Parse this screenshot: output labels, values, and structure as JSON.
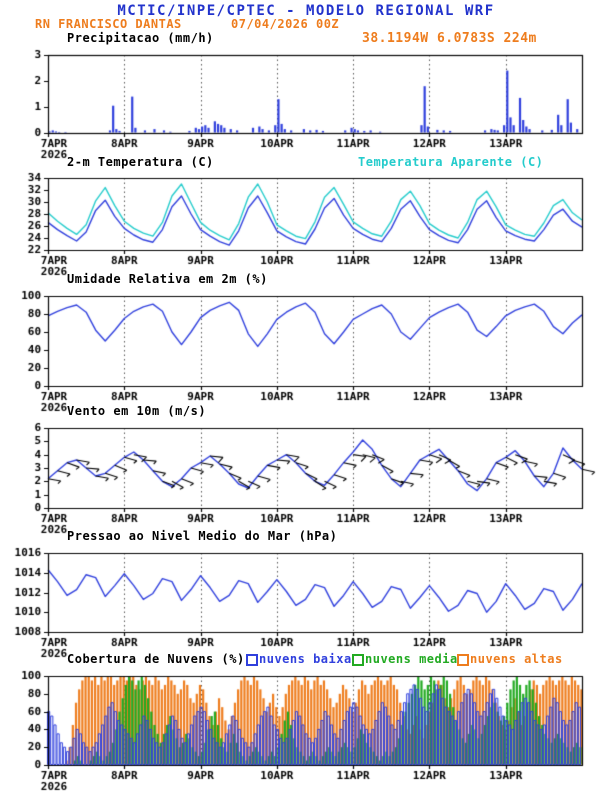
{
  "header": {
    "title": "MCTIC/INPE/CPTEC - MODELO REGIONAL WRF",
    "station": "RN FRANCISCO DANTAS",
    "run_datetime": "07/04/2026 00Z",
    "location": "38.1194W 6.0783S 224m"
  },
  "colors": {
    "header_blue": "#2233cc",
    "orange": "#ee7d1e",
    "line_blue": "#3040dd",
    "cyan": "#25cccc",
    "green": "#22aa22",
    "black": "#000000",
    "grid": "#555555"
  },
  "x_axis": {
    "hours_total": 168,
    "tick_hours": [
      0,
      24,
      48,
      72,
      96,
      120,
      144
    ],
    "tick_labels": [
      "7APR",
      "8APR",
      "9APR",
      "10APR",
      "11APR",
      "12APR",
      "13APR"
    ],
    "year_label": "2026"
  },
  "chart_data": [
    {
      "id": "precip",
      "type": "bar",
      "title": "Precipitacao (mm/h)",
      "ylim": [
        0,
        3
      ],
      "yticks": [
        0,
        1,
        2,
        3
      ],
      "x_step_hours": 1,
      "values": [
        0.06,
        0.1,
        0.06,
        0.04,
        0,
        0.04,
        0,
        0,
        0,
        0,
        0,
        0,
        0,
        0,
        0,
        0,
        0,
        0,
        0,
        0.1,
        1.05,
        0.15,
        0.08,
        0,
        0,
        0,
        1.4,
        0.2,
        0,
        0,
        0.1,
        0,
        0,
        0.15,
        0,
        0,
        0.1,
        0,
        0.05,
        0,
        0,
        0,
        0,
        0,
        0.08,
        0,
        0.2,
        0.15,
        0.25,
        0.3,
        0.2,
        0,
        0.45,
        0.35,
        0.3,
        0.2,
        0,
        0.15,
        0,
        0.1,
        0,
        0,
        0,
        0,
        0.2,
        0,
        0.25,
        0.15,
        0,
        0.1,
        0,
        0.3,
        1.3,
        0.35,
        0.15,
        0,
        0.1,
        0,
        0,
        0,
        0.15,
        0,
        0.1,
        0,
        0.12,
        0,
        0.08,
        0,
        0,
        0,
        0,
        0,
        0,
        0.1,
        0,
        0.2,
        0.15,
        0.1,
        0,
        0.08,
        0,
        0.1,
        0,
        0,
        0.05,
        0,
        0,
        0,
        0,
        0,
        0,
        0,
        0,
        0,
        0,
        0,
        0,
        0.3,
        1.8,
        0.25,
        0,
        0,
        0.12,
        0,
        0.1,
        0,
        0.08,
        0,
        0,
        0,
        0,
        0,
        0,
        0,
        0,
        0,
        0,
        0.1,
        0,
        0.15,
        0.12,
        0.1,
        0,
        0.3,
        2.4,
        0.6,
        0.3,
        0,
        1.35,
        0.5,
        0.25,
        0.15,
        0,
        0,
        0,
        0.1,
        0,
        0,
        0.12,
        0,
        0.7,
        0.3,
        0,
        1.3,
        0.4,
        0,
        0.15,
        0
      ]
    },
    {
      "id": "temp",
      "type": "line",
      "title": "2-m Temperatura (C)",
      "legend_right": "Temperatura Aparente (C)",
      "ylim": [
        22,
        34
      ],
      "yticks": [
        22,
        24,
        26,
        28,
        30,
        32,
        34
      ],
      "x_step_hours": 3,
      "series": [
        {
          "name": "2-m Temperatura (C)",
          "color": "line_blue",
          "values": [
            26.6,
            25.4,
            24.4,
            23.5,
            25.0,
            28.6,
            30.3,
            27.6,
            25.6,
            24.5,
            23.7,
            23.3,
            25.4,
            29.2,
            31.0,
            28.0,
            25.4,
            24.3,
            23.4,
            22.8,
            25.2,
            29.0,
            31.0,
            28.2,
            25.2,
            24.2,
            23.4,
            23.0,
            25.5,
            29.0,
            30.6,
            27.8,
            25.6,
            24.6,
            23.8,
            23.4,
            25.6,
            28.8,
            30.2,
            27.6,
            25.4,
            24.4,
            23.6,
            23.2,
            25.4,
            28.8,
            30.2,
            27.4,
            25.2,
            24.4,
            23.8,
            23.5,
            25.4,
            27.8,
            28.8,
            26.8,
            25.8
          ]
        },
        {
          "name": "Temperatura Aparente (C)",
          "color": "cyan",
          "values": [
            28.2,
            26.8,
            25.6,
            24.6,
            26.2,
            30.2,
            32.4,
            29.4,
            26.8,
            25.6,
            24.8,
            24.3,
            26.6,
            31.0,
            33.0,
            29.8,
            26.6,
            25.3,
            24.4,
            23.7,
            26.4,
            30.8,
            33.0,
            30.0,
            26.2,
            25.2,
            24.3,
            23.9,
            26.7,
            30.8,
            32.4,
            29.6,
            26.7,
            25.6,
            24.7,
            24.3,
            26.8,
            30.4,
            31.8,
            29.4,
            26.4,
            25.3,
            24.5,
            24.0,
            26.6,
            30.4,
            31.8,
            29.2,
            26.2,
            25.3,
            24.6,
            24.3,
            26.5,
            29.4,
            30.4,
            28.2,
            27.0
          ]
        }
      ]
    },
    {
      "id": "rh",
      "type": "line",
      "title": "Umidade Relativa em 2m (%)",
      "ylim": [
        0,
        100
      ],
      "yticks": [
        0,
        20,
        40,
        60,
        80,
        100
      ],
      "x_step_hours": 3,
      "values": [
        78,
        83,
        87,
        90,
        82,
        62,
        50,
        62,
        75,
        83,
        88,
        91,
        83,
        60,
        46,
        60,
        76,
        84,
        89,
        93,
        84,
        58,
        44,
        58,
        74,
        82,
        88,
        92,
        82,
        58,
        47,
        60,
        74,
        80,
        86,
        90,
        80,
        60,
        52,
        64,
        76,
        82,
        87,
        91,
        82,
        62,
        55,
        66,
        78,
        84,
        88,
        91,
        83,
        66,
        58,
        70,
        79
      ]
    },
    {
      "id": "wind",
      "type": "line",
      "title": "Vento em 10m (m/s)",
      "ylim": [
        0,
        6
      ],
      "yticks": [
        0,
        1,
        2,
        3,
        4,
        5,
        6
      ],
      "x_step_hours": 3,
      "values": [
        2.2,
        2.8,
        3.4,
        3.6,
        3.0,
        2.4,
        2.6,
        3.2,
        3.8,
        4.2,
        3.6,
        2.8,
        2.0,
        1.6,
        2.2,
        3.0,
        3.4,
        3.9,
        3.3,
        2.6,
        1.8,
        1.5,
        2.4,
        3.2,
        3.6,
        4.0,
        3.4,
        2.6,
        2.0,
        1.7,
        2.5,
        3.4,
        4.2,
        5.1,
        4.4,
        3.2,
        2.2,
        1.6,
        2.6,
        3.6,
        4.0,
        4.4,
        3.6,
        2.8,
        1.8,
        1.3,
        2.2,
        3.4,
        3.8,
        4.3,
        3.5,
        2.4,
        1.6,
        2.6,
        4.5,
        3.6,
        2.9
      ],
      "barb_dirs_deg": [
        100,
        105,
        110,
        100,
        95,
        100,
        108,
        112,
        105,
        100,
        95,
        102,
        110,
        118,
        112,
        106,
        100,
        96,
        104,
        112,
        120,
        114,
        106,
        100,
        95,
        100,
        108,
        116,
        122,
        115,
        108,
        102,
        98,
        104,
        112,
        118,
        110,
        102,
        96,
        100,
        108,
        114,
        120,
        112,
        104,
        98,
        104,
        110,
        116,
        110,
        102,
        96,
        100,
        108,
        114,
        108,
        102
      ]
    },
    {
      "id": "pres",
      "type": "line",
      "title": "Pressao ao Nivel Medio do Mar (hPa)",
      "ylim": [
        1008,
        1016
      ],
      "yticks": [
        1008,
        1010,
        1012,
        1014,
        1016
      ],
      "x_step_hours": 3,
      "values": [
        1014.3,
        1013.1,
        1011.7,
        1012.3,
        1013.8,
        1013.5,
        1011.6,
        1012.7,
        1013.9,
        1012.7,
        1011.3,
        1011.9,
        1013.4,
        1013.1,
        1011.2,
        1012.3,
        1013.7,
        1012.5,
        1011.1,
        1011.7,
        1013.2,
        1012.9,
        1011.0,
        1012.1,
        1013.3,
        1012.1,
        1010.7,
        1011.3,
        1012.8,
        1012.5,
        1010.6,
        1011.7,
        1013.1,
        1011.9,
        1010.5,
        1011.1,
        1012.6,
        1012.3,
        1010.4,
        1011.5,
        1012.7,
        1011.5,
        1010.1,
        1010.7,
        1012.2,
        1011.9,
        1010.0,
        1011.1,
        1012.9,
        1011.7,
        1010.3,
        1010.9,
        1012.4,
        1012.1,
        1010.2,
        1011.3,
        1012.9
      ]
    },
    {
      "id": "clouds",
      "type": "bar",
      "title": "Cobertura de Nuvens (%)",
      "ylim": [
        0,
        100
      ],
      "yticks": [
        0,
        20,
        40,
        60,
        80,
        100
      ],
      "x_step_hours": 1,
      "series": [
        {
          "name": "nuvens baixas",
          "color": "line_blue",
          "style": "outline",
          "values": [
            60,
            55,
            45,
            35,
            25,
            20,
            15,
            20,
            30,
            40,
            35,
            25,
            20,
            15,
            20,
            25,
            35,
            45,
            55,
            65,
            70,
            60,
            50,
            45,
            40,
            35,
            30,
            25,
            35,
            45,
            55,
            50,
            40,
            30,
            25,
            20,
            25,
            35,
            45,
            55,
            50,
            40,
            30,
            25,
            35,
            45,
            55,
            60,
            65,
            60,
            50,
            40,
            30,
            25,
            20,
            25,
            35,
            45,
            55,
            50,
            40,
            30,
            25,
            20,
            25,
            35,
            45,
            55,
            60,
            65,
            55,
            45,
            40,
            30,
            25,
            30,
            40,
            50,
            60,
            55,
            45,
            35,
            30,
            25,
            30,
            40,
            50,
            60,
            55,
            45,
            35,
            30,
            40,
            50,
            60,
            65,
            70,
            65,
            55,
            45,
            40,
            35,
            40,
            50,
            60,
            70,
            65,
            55,
            45,
            40,
            50,
            60,
            70,
            80,
            85,
            90,
            85,
            75,
            65,
            60,
            70,
            80,
            90,
            85,
            75,
            65,
            60,
            55,
            50,
            60,
            70,
            80,
            85,
            80,
            70,
            60,
            55,
            60,
            70,
            80,
            85,
            75,
            65,
            55,
            50,
            45,
            40,
            50,
            60,
            70,
            75,
            70,
            60,
            50,
            45,
            40,
            45,
            55,
            65,
            75,
            70,
            60,
            50,
            45,
            50,
            60,
            70,
            65
          ]
        },
        {
          "name": "nuvens medias",
          "color": "green",
          "values": [
            0,
            0,
            0,
            0,
            0,
            0,
            0,
            0,
            5,
            10,
            5,
            0,
            0,
            5,
            10,
            15,
            10,
            5,
            10,
            15,
            25,
            40,
            60,
            75,
            90,
            100,
            95,
            85,
            95,
            100,
            90,
            75,
            60,
            45,
            35,
            25,
            35,
            45,
            55,
            40,
            30,
            20,
            25,
            35,
            30,
            20,
            15,
            10,
            15,
            25,
            40,
            55,
            60,
            45,
            30,
            20,
            15,
            25,
            35,
            25,
            15,
            10,
            5,
            10,
            15,
            20,
            15,
            10,
            5,
            10,
            15,
            10,
            20,
            35,
            50,
            60,
            45,
            30,
            20,
            15,
            10,
            5,
            10,
            15,
            10,
            5,
            10,
            15,
            20,
            15,
            10,
            15,
            20,
            25,
            20,
            15,
            20,
            30,
            40,
            35,
            25,
            20,
            15,
            10,
            5,
            10,
            15,
            10,
            15,
            20,
            30,
            45,
            60,
            70,
            80,
            90,
            100,
            95,
            85,
            90,
            100,
            95,
            85,
            90,
            100,
            95,
            80,
            65,
            50,
            40,
            30,
            25,
            35,
            45,
            40,
            30,
            35,
            45,
            55,
            65,
            70,
            60,
            50,
            55,
            70,
            85,
            95,
            100,
            90,
            80,
            90,
            95,
            85,
            70,
            55,
            45,
            35,
            30,
            25,
            30,
            35,
            30,
            25,
            20,
            15,
            20,
            25,
            20
          ]
        },
        {
          "name": "nuvens altas",
          "color": "orange",
          "values": [
            0,
            0,
            0,
            0,
            0,
            5,
            20,
            45,
            70,
            85,
            95,
            100,
            100,
            95,
            100,
            90,
            100,
            95,
            100,
            100,
            90,
            95,
            100,
            100,
            95,
            100,
            100,
            90,
            85,
            95,
            100,
            95,
            90,
            100,
            95,
            85,
            90,
            100,
            95,
            90,
            80,
            85,
            95,
            90,
            75,
            70,
            80,
            90,
            85,
            70,
            55,
            45,
            60,
            75,
            65,
            50,
            40,
            55,
            70,
            85,
            95,
            100,
            95,
            90,
            100,
            95,
            85,
            75,
            60,
            70,
            80,
            65,
            55,
            65,
            80,
            90,
            95,
            100,
            95,
            90,
            100,
            95,
            85,
            95,
            100,
            90,
            95,
            85,
            75,
            65,
            70,
            80,
            90,
            85,
            75,
            60,
            70,
            85,
            95,
            90,
            80,
            90,
            95,
            100,
            95,
            90,
            95,
            100,
            90,
            85,
            70,
            55,
            40,
            35,
            45,
            55,
            40,
            30,
            45,
            60,
            70,
            85,
            95,
            90,
            75,
            65,
            75,
            85,
            95,
            100,
            90,
            80,
            85,
            95,
            100,
            95,
            90,
            100,
            95,
            85,
            70,
            55,
            45,
            40,
            50,
            65,
            75,
            60,
            45,
            55,
            70,
            85,
            95,
            90,
            80,
            90,
            95,
            100,
            95,
            90,
            95,
            100,
            95,
            90,
            100,
            95,
            90,
            85
          ]
        }
      ]
    }
  ]
}
